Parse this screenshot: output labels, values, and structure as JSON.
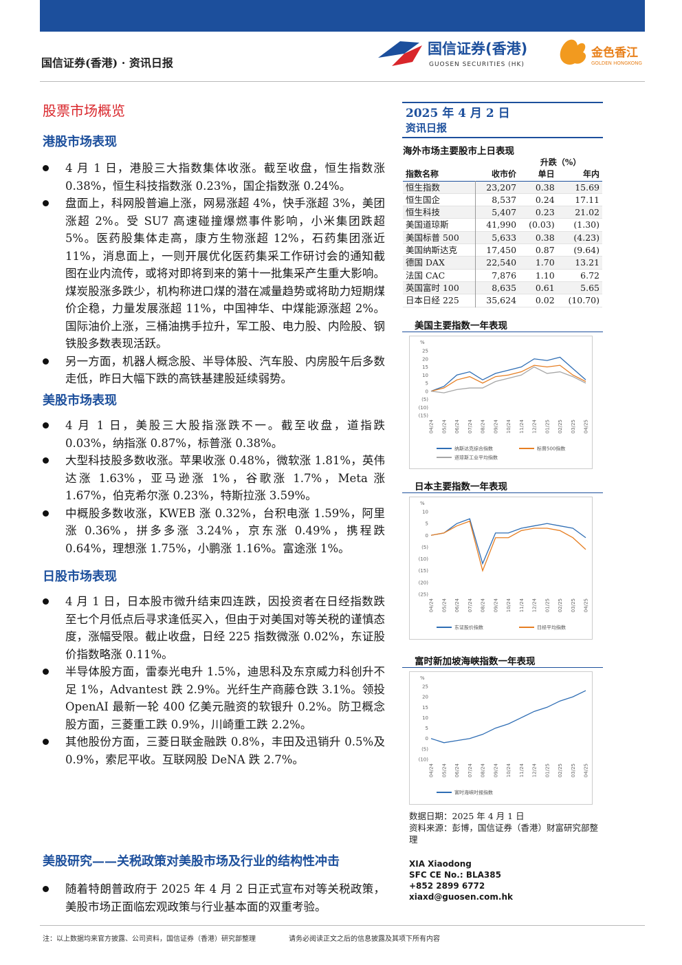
{
  "header": {
    "brand": "国信证券(香港) · 资讯日报",
    "logo_cn": "国信证券(香港)",
    "logo_en": "GUOSEN SECURITIES (HK)",
    "logo2_cn": "金色香江",
    "logo2_en": "GOLDEN HONGKONG"
  },
  "main": {
    "title": "股票市场概览",
    "sections": [
      {
        "heading": "港股市场表现",
        "bullets": [
          "4 月 1 日，港股三大指数集体收涨。截至收盘，恒生指数涨 0.38%，恒生科技指数涨 0.23%，国企指数涨 0.24%。",
          "盘面上，科网股普遍上涨，网易涨超 4%，快手涨超 3%，美团涨超 2%。受 SU7 高速碰撞爆燃事件影响，小米集团跌超 5%。医药股集体走高，康方生物涨超 12%，石药集团涨近 11%，消息面上，一则开展优化医药集采工作研讨会的通知截图在业内流传，或将对即将到来的第十一批集采产生重大影响。煤炭股涨多跌少，机构称进口煤的潜在减量趋势或将助力短期煤价企稳，力量发展涨超 11%，中国神华、中煤能源涨超 2%。国际油价上涨，三桶油携手拉升，军工股、电力股、内险股、钢铁股多数表现活跃。",
          "另一方面，机器人概念股、半导体股、汽车股、内房股午后多数走低，昨日大幅下跌的高铁基建股延续弱势。"
        ]
      },
      {
        "heading": "美股市场表现",
        "bullets": [
          "4 月 1 日，美股三大股指涨跌不一。截至收盘，道指跌 0.03%，纳指涨 0.87%，标普涨 0.38%。",
          "大型科技股多数收涨。苹果收涨 0.48%，微软涨 1.81%，英伟达涨 1.63%，亚马逊涨 1%，谷歌涨 1.7%，Meta 涨 1.67%，伯克希尔涨 0.23%，特斯拉涨 3.59%。",
          "中概股多数收涨，KWEB 涨 0.32%，台积电涨 1.59%，阿里涨 0.36%，拼多多涨 3.24%，京东涨 0.49%，携程跌 0.64%，理想涨 1.75%，小鹏涨 1.16%。富途涨 1%。"
        ]
      },
      {
        "heading": "日股市场表现",
        "bullets": [
          "4 月 1 日，日本股市微升结束四连跌，因投资者在日经指数跌至七个月低点后寻求逢低买入，但由于对美国对等关税的谨慎态度，涨幅受限。截止收盘，日经 225 指数微涨 0.02%，东证股价指数略涨 0.11%。",
          "半导体股方面，雷泰光电升 1.5%，迪思科及东京威力科创升不足 1%，Advantest 跌 2.9%。光纤生产商藤仓跌 3.1%。领投 OpenAI 最新一轮 400 亿美元融资的软银升 0.2%。防卫概念股方面，三菱重工跌 0.9%，川崎重工跌 2.2%。",
          "其他股份方面，三菱日联金融跌 0.8%，丰田及迅销升 0.5%及 0.9%，索尼平收。互联网股 DeNA 跌 2.7%。"
        ]
      }
    ]
  },
  "research": {
    "heading": "美股研究——关税政策对美股市场及行业的结构性冲击",
    "bullets": [
      "随着特朗普政府于 2025 年 4 月 2 日正式宣布对等关税政策，美股市场正面临宏观政策与行业基本面的双重考验。"
    ]
  },
  "sidebar": {
    "date": "2025 年 4 月 2 日",
    "report": "资讯日报",
    "table": {
      "title": "海外市场主要股市上日表现",
      "header": {
        "name": "指数名称",
        "close": "收市价",
        "change": "升跌（%）",
        "day": "单日",
        "ytd": "年内"
      },
      "rows": [
        [
          "恒生指数",
          "23,207",
          "0.38",
          "15.69"
        ],
        [
          "恒生国企",
          "8,537",
          "0.24",
          "17.11"
        ],
        [
          "恒生科技",
          "5,407",
          "0.23",
          "21.02"
        ],
        [
          "美国道琼斯",
          "41,990",
          "(0.03)",
          "(1.30)"
        ],
        [
          "美国标普 500",
          "5,633",
          "0.38",
          "(4.23)"
        ],
        [
          "美国纳斯达克",
          "17,450",
          "0.87",
          "(9.64)"
        ],
        [
          "德国 DAX",
          "22,540",
          "1.70",
          "13.21"
        ],
        [
          "法国 CAC",
          "7,876",
          "1.10",
          "6.72"
        ],
        [
          "英国富时 100",
          "8,635",
          "0.61",
          "5.65"
        ],
        [
          "日本日经 225",
          "35,624",
          "0.02",
          "(10.70)"
        ]
      ]
    },
    "charts": [
      {
        "type": "line",
        "title": "美国主要指数一年表现",
        "ylabel": "%",
        "categories": [
          "04/24",
          "05/24",
          "06/24",
          "07/24",
          "08/24",
          "09/24",
          "10/24",
          "11/24",
          "12/24",
          "01/25",
          "02/25",
          "03/25",
          "04/25"
        ],
        "ylim": [
          -15,
          25
        ],
        "yticks": [
          25,
          20,
          15,
          10,
          5,
          0,
          {
            "value": -5,
            "label": "(5)"
          },
          {
            "value": -10,
            "label": "(10)"
          },
          {
            "value": -15,
            "label": "(15)"
          }
        ],
        "grid": false,
        "series": [
          {
            "name": "纳斯达克综合指数",
            "color": "#2e6db4",
            "values": [
              0,
              3,
              10,
              12,
              7,
              11,
              13,
              15,
              20,
              19,
              21,
              14,
              7
            ]
          },
          {
            "name": "标普500指数",
            "color": "#e67e22",
            "values": [
              0,
              2,
              7,
              9,
              5,
              9,
              10,
              12,
              16,
              15,
              16,
              10,
              6
            ]
          },
          {
            "name": "道琼斯工业平均指数",
            "color": "#a6a6a6",
            "values": [
              0,
              -1,
              1,
              2,
              2,
              6,
              8,
              10,
              15,
              11,
              12,
              9,
              5
            ]
          }
        ]
      },
      {
        "type": "line",
        "title": "日本主要指数一年表现",
        "ylabel": "%",
        "categories": [
          "04/24",
          "05/24",
          "06/24",
          "07/24",
          "08/24",
          "09/24",
          "10/24",
          "11/24",
          "12/24",
          "01/25",
          "02/25",
          "03/25",
          "04/25"
        ],
        "ylim": [
          -25,
          10
        ],
        "yticks": [
          10,
          5,
          0,
          {
            "value": -5,
            "label": "(5)"
          },
          {
            "value": -10,
            "label": "(10)"
          },
          {
            "value": -15,
            "label": "(15)"
          },
          {
            "value": -20,
            "label": "(20)"
          },
          {
            "value": -25,
            "label": "(25)"
          }
        ],
        "grid": false,
        "series": [
          {
            "name": "东证股价指数",
            "color": "#2e6db4",
            "values": [
              0,
              1,
              5,
              7,
              -12,
              1,
              1,
              3,
              4,
              5,
              4,
              3,
              -1
            ]
          },
          {
            "name": "日经平均指数",
            "color": "#e67e22",
            "values": [
              0,
              1,
              4,
              6,
              -15,
              -1,
              -1,
              2,
              3,
              3,
              2,
              -1,
              -6
            ]
          }
        ]
      },
      {
        "type": "line",
        "title": "富时新加坡海峡指数一年表现",
        "ylabel": "%",
        "categories": [
          "04/24",
          "05/24",
          "06/24",
          "07/24",
          "08/24",
          "09/24",
          "10/24",
          "11/24",
          "12/24",
          "01/25",
          "02/25",
          "03/25",
          "04/25"
        ],
        "ylim": [
          -10,
          25
        ],
        "yticks": [
          25,
          20,
          15,
          10,
          5,
          0,
          {
            "value": -5,
            "label": "(5)"
          },
          {
            "value": -10,
            "label": "(10)"
          }
        ],
        "grid": false,
        "series": [
          {
            "name": "富时海峡时报指数",
            "color": "#2e6db4",
            "values": [
              0,
              -2,
              -1,
              0,
              2,
              5,
              7,
              10,
              13,
              15,
              18,
              20,
              23
            ]
          }
        ]
      }
    ],
    "data_date": "数据日期：2025 年 4 月 1 日",
    "source": "资料来源：彭博，国信证券（香港）财富研究部整理",
    "contact": [
      "XIA Xiaodong",
      "SFC CE No.:   BLA385",
      "+852 2899 6772",
      "xiaxd@guosen.com.hk"
    ]
  },
  "footer": {
    "left": "注：以上数据均来官方披露、公司资料，国信证券（香港）研究部整理",
    "right": "请务必阅读正文之后的信息披露及其项下所有内容"
  }
}
